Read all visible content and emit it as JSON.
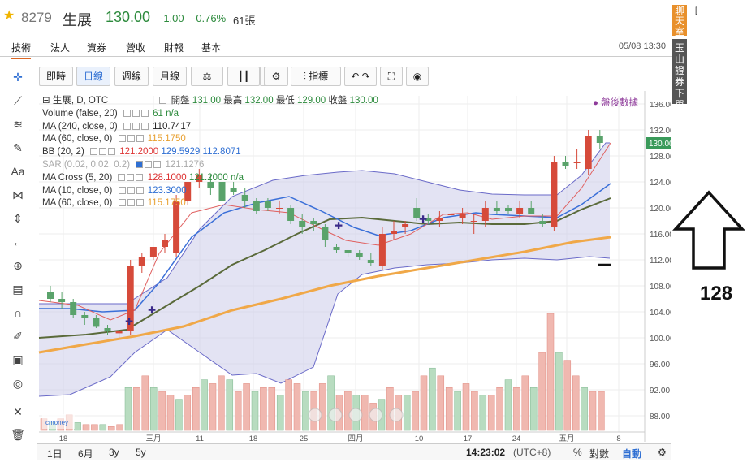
{
  "ticker": {
    "code": "8279",
    "name": "生展",
    "price": "130.00",
    "change": "-1.00",
    "change_pct": "-0.76%",
    "volume": "61張"
  },
  "tabs": [
    "技術",
    "法人",
    "資券",
    "營收",
    "財報",
    "基本"
  ],
  "datetime": "05/08 13:30",
  "toolbar": {
    "intraday": "即時",
    "daily": "日線",
    "weekly": "週線",
    "monthly": "月線",
    "indicators": "指標"
  },
  "legend": {
    "title": "生展, D, OTC",
    "open_label": "開盤",
    "open": "131.00",
    "high_label": "最高",
    "high": "132.00",
    "low_label": "最低",
    "low": "129.00",
    "close_label": "收盤",
    "close": "130.00",
    "rows": [
      {
        "label": "Volume (false, 20)",
        "value": "61",
        "value2": "n/a",
        "color": "#2c8a3c"
      },
      {
        "label": "MA (240, close, 0)",
        "value": "110.7417",
        "color": "#222"
      },
      {
        "label": "MA (60, close, 0)",
        "value": "115.1750",
        "color": "#e8a030"
      },
      {
        "label": "BB (20, 2)",
        "value": "121.2000",
        "value2": "129.5929",
        "value3": "112.8071",
        "color": "#d33"
      },
      {
        "label": "SAR (0.02, 0.02, 0.2)",
        "value": "121.1276",
        "color": "#999"
      },
      {
        "label": "MA Cross (5, 20)",
        "value": "128.1000",
        "value2": "121.2000",
        "value3": "n/a",
        "color": "#d33"
      },
      {
        "label": "MA (10, close, 0)",
        "value": "123.3000",
        "color": "#2f6fd3"
      },
      {
        "label": "MA (60, close, 0)",
        "value": "115.1750",
        "color": "#e8a030"
      }
    ]
  },
  "after_hours": "● 盤後數據",
  "price_axis": [
    "136.00",
    "132.00",
    "128.00",
    "124.00",
    "120.00",
    "116.00",
    "112.00",
    "108.00",
    "104.00",
    "100.00",
    "96.00",
    "92.00",
    "88.00"
  ],
  "last_price_tag": "130.00",
  "date_axis": [
    "18",
    "三月",
    "11",
    "18",
    "25",
    "四月",
    "10",
    "17",
    "24",
    "五月",
    "8"
  ],
  "bottom": {
    "ranges": [
      "1日",
      "6月",
      "3y",
      "5y"
    ],
    "clock": "14:23:02",
    "tz": "(UTC+8)",
    "pct": "%",
    "log": "對數",
    "auto": "自動"
  },
  "side": {
    "chat": "聊天室",
    "broker": "玉山證券下單"
  },
  "annotation": "128",
  "colors": {
    "up": "#d64a3a",
    "down": "#5aa36b",
    "bb_fill": "#c8c8e8",
    "ma240": "#f0a848",
    "ma60": "#5a6a3a",
    "ma10": "#3a6fd8"
  }
}
